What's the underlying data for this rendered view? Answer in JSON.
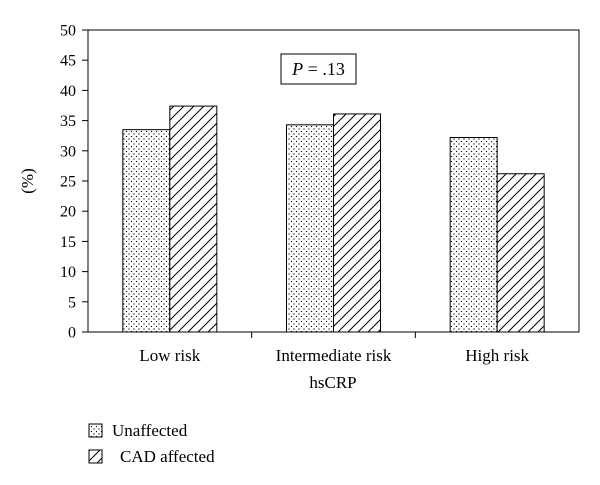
{
  "chart_data": {
    "type": "bar",
    "categories": [
      "Low risk",
      "Intermediate risk",
      "High risk"
    ],
    "series": [
      {
        "name": "Unaffected",
        "pattern": "dots",
        "values": [
          33.5,
          34.3,
          32.2
        ]
      },
      {
        "name": "CAD affected",
        "pattern": "hatch",
        "values": [
          37.4,
          36.1,
          26.2
        ]
      }
    ],
    "xlabel": "hsCRP",
    "ylabel": "(%)",
    "ylim": [
      0,
      50
    ],
    "yticks": [
      0,
      5,
      10,
      15,
      20,
      25,
      30,
      35,
      40,
      45,
      50
    ],
    "annotation": {
      "italic": "P",
      "rest": " = .13"
    },
    "legend": {
      "position": "bottom-left"
    },
    "grid": false,
    "colors": {
      "bar_fill": "#ffffff",
      "stroke": "#000000"
    }
  }
}
